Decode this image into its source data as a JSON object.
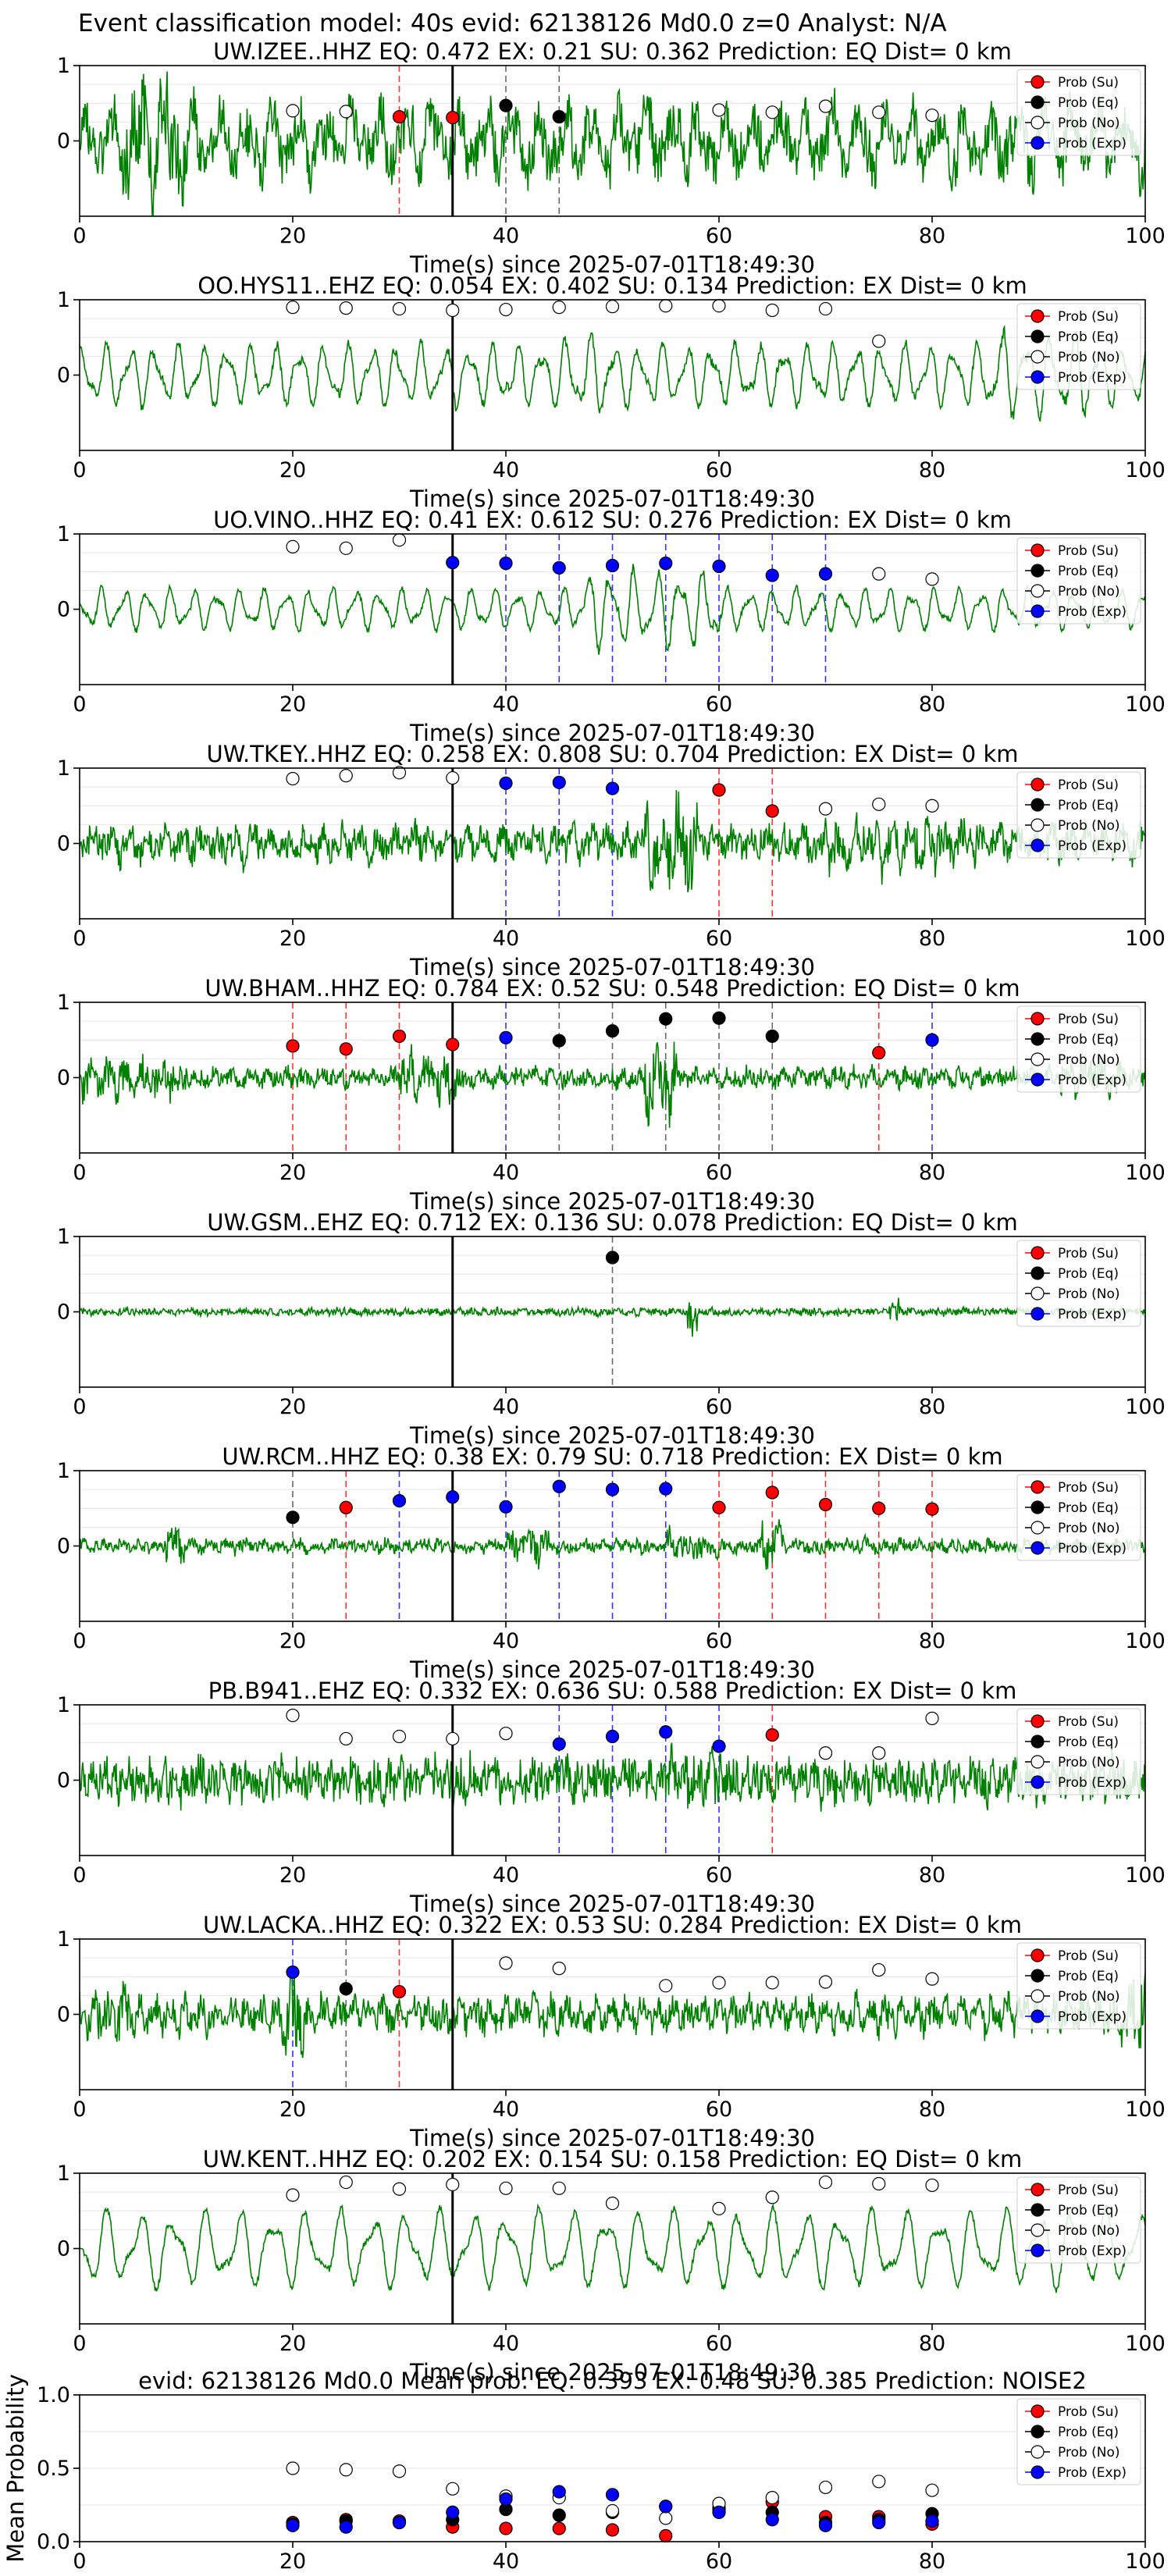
{
  "suptitle": "Event classification model: 40s evid: 62138126 Md0.0 z=0 Analyst: N/A",
  "colors": {
    "waveform": "#008000",
    "su": "#ff0000",
    "eq": "#000000",
    "no": "#ffffff",
    "exp": "#0000ff",
    "arrival_line": "#000000",
    "grid": "#e6e6e6"
  },
  "icons": [
    "legend-marker-su",
    "legend-marker-eq",
    "legend-marker-no",
    "legend-marker-exp"
  ],
  "legend_labels": [
    "Prob (Su)",
    "Prob (Eq)",
    "Prob (No)",
    "Prob (Exp)"
  ],
  "chart_data": [
    {
      "type": "line",
      "station": "UW.IZEE..HHZ",
      "title": "UW.IZEE..HHZ   EQ: 0.472  EX: 0.21  SU: 0.362   Prediction: EQ    Dist= 0 km",
      "xlabel": "Time(s) since 2025-07-01T18:49:30",
      "xlim": [
        0,
        100
      ],
      "ylim": [
        -1,
        1
      ],
      "xticks": [
        "0",
        "20",
        "40",
        "60",
        "80",
        "100"
      ],
      "yticks": [
        "1",
        "0"
      ],
      "legend": "top-right",
      "grid": true,
      "wave": {
        "amp": 0.55,
        "cycles": 40,
        "noise": 0.9,
        "bursts": [
          [
            4,
            10,
            1.6
          ],
          [
            30,
            40,
            1.0
          ]
        ]
      },
      "arrival": 35,
      "points": {
        "su": [
          [
            30,
            0.32
          ],
          [
            35,
            0.31
          ]
        ],
        "eq": [
          [
            40,
            0.47
          ],
          [
            45,
            0.32
          ]
        ],
        "no": [
          [
            20,
            0.4
          ],
          [
            25,
            0.39
          ],
          [
            60,
            0.41
          ],
          [
            65,
            0.38
          ],
          [
            70,
            0.46
          ],
          [
            75,
            0.38
          ],
          [
            80,
            0.34
          ]
        ],
        "exp": []
      }
    },
    {
      "type": "line",
      "station": "OO.HYS11..EHZ",
      "title": "OO.HYS11..EHZ   EQ: 0.054  EX: 0.402  SU: 0.134   Prediction: EX    Dist= 0 km",
      "xlabel": "Time(s) since 2025-07-01T18:49:30",
      "xlim": [
        0,
        100
      ],
      "ylim": [
        -1,
        1
      ],
      "xticks": [
        "0",
        "20",
        "40",
        "60",
        "80",
        "100"
      ],
      "yticks": [
        "1",
        "0"
      ],
      "legend": "top-right",
      "grid": true,
      "wave": {
        "amp": 0.6,
        "cycles": 44,
        "noise": 0.15,
        "bursts": [
          [
            45,
            50,
            1.3
          ],
          [
            85,
            95,
            1.4
          ]
        ]
      },
      "arrival": 35,
      "points": {
        "su": [],
        "eq": [],
        "no": [
          [
            20,
            0.9
          ],
          [
            25,
            0.89
          ],
          [
            30,
            0.88
          ],
          [
            35,
            0.86
          ],
          [
            40,
            0.87
          ],
          [
            45,
            0.9
          ],
          [
            50,
            0.91
          ],
          [
            55,
            0.92
          ],
          [
            60,
            0.92
          ],
          [
            65,
            0.86
          ],
          [
            70,
            0.88
          ],
          [
            75,
            0.45
          ]
        ],
        "exp": []
      }
    },
    {
      "type": "line",
      "station": "UO.VINO..HHZ",
      "title": "UO.VINO..HHZ   EQ: 0.41  EX: 0.612  SU: 0.276   Prediction: EX    Dist= 0 km",
      "xlabel": "Time(s) since 2025-07-01T18:49:30",
      "xlim": [
        0,
        100
      ],
      "ylim": [
        -1,
        1
      ],
      "xticks": [
        "0",
        "20",
        "40",
        "60",
        "80",
        "100"
      ],
      "yticks": [
        "1",
        "0"
      ],
      "legend": "top-right",
      "grid": true,
      "wave": {
        "amp": 0.4,
        "cycles": 46,
        "noise": 0.1,
        "bursts": [
          [
            47,
            60,
            1.9
          ]
        ]
      },
      "arrival": 35,
      "points": {
        "su": [],
        "eq": [],
        "no": [
          [
            20,
            0.83
          ],
          [
            25,
            0.81
          ],
          [
            30,
            0.92
          ],
          [
            75,
            0.47
          ],
          [
            80,
            0.4
          ]
        ],
        "exp": [
          [
            35,
            0.62
          ],
          [
            40,
            0.61
          ],
          [
            45,
            0.55
          ],
          [
            50,
            0.58
          ],
          [
            55,
            0.61
          ],
          [
            60,
            0.57
          ],
          [
            65,
            0.45
          ],
          [
            70,
            0.47
          ]
        ]
      }
    },
    {
      "type": "line",
      "station": "UW.TKEY..HHZ",
      "title": "UW.TKEY..HHZ   EQ: 0.258  EX: 0.808  SU: 0.704   Prediction: EX    Dist= 0 km",
      "xlabel": "Time(s) since 2025-07-01T18:49:30",
      "xlim": [
        0,
        100
      ],
      "ylim": [
        -1,
        1
      ],
      "xticks": [
        "0",
        "20",
        "40",
        "60",
        "80",
        "100"
      ],
      "yticks": [
        "1",
        "0"
      ],
      "legend": "top-right",
      "grid": true,
      "wave": {
        "amp": 0.2,
        "cycles": 60,
        "noise": 0.5,
        "bursts": [
          [
            53,
            58,
            2.6
          ],
          [
            70,
            85,
            1.4
          ]
        ]
      },
      "arrival": 35,
      "points": {
        "su": [
          [
            60,
            0.71
          ],
          [
            65,
            0.43
          ]
        ],
        "eq": [],
        "no": [
          [
            20,
            0.86
          ],
          [
            25,
            0.9
          ],
          [
            30,
            0.94
          ],
          [
            35,
            0.87
          ],
          [
            70,
            0.46
          ],
          [
            75,
            0.52
          ],
          [
            80,
            0.5
          ]
        ],
        "exp": [
          [
            40,
            0.8
          ],
          [
            45,
            0.81
          ],
          [
            50,
            0.73
          ]
        ]
      }
    },
    {
      "type": "line",
      "station": "UW.BHAM..HHZ",
      "title": "UW.BHAM..HHZ   EQ: 0.784  EX: 0.52  SU: 0.548   Prediction: EQ    Dist= 0 km",
      "xlabel": "Time(s) since 2025-07-01T18:49:30",
      "xlim": [
        0,
        100
      ],
      "ylim": [
        -1,
        1
      ],
      "xticks": [
        "0",
        "20",
        "40",
        "60",
        "80",
        "100"
      ],
      "yticks": [
        "1",
        "0"
      ],
      "legend": "top-right",
      "grid": true,
      "wave": {
        "amp": 0.1,
        "cycles": 60,
        "noise": 0.3,
        "bursts": [
          [
            0,
            10,
            2.0
          ],
          [
            30,
            36,
            2.5
          ],
          [
            53,
            56,
            3.5
          ],
          [
            92,
            98,
            1.8
          ]
        ]
      },
      "arrival": 35,
      "points": {
        "su": [
          [
            20,
            0.42
          ],
          [
            25,
            0.38
          ],
          [
            30,
            0.55
          ],
          [
            35,
            0.44
          ],
          [
            75,
            0.33
          ]
        ],
        "eq": [
          [
            45,
            0.49
          ],
          [
            50,
            0.62
          ],
          [
            55,
            0.78
          ],
          [
            60,
            0.79
          ],
          [
            65,
            0.55
          ]
        ],
        "no": [],
        "exp": [
          [
            40,
            0.53
          ],
          [
            80,
            0.5
          ]
        ]
      }
    },
    {
      "type": "line",
      "station": "UW.GSM..EHZ",
      "title": "UW.GSM..EHZ   EQ: 0.712  EX: 0.136  SU: 0.078   Prediction: EQ    Dist= 0 km",
      "xlabel": "Time(s) since 2025-07-01T18:49:30",
      "xlim": [
        0,
        100
      ],
      "ylim": [
        -1,
        1
      ],
      "xticks": [
        "0",
        "20",
        "40",
        "60",
        "80",
        "100"
      ],
      "yticks": [
        "1",
        "0"
      ],
      "legend": "top-right",
      "grid": true,
      "wave": {
        "amp": 0.02,
        "cycles": 80,
        "noise": 0.12,
        "bursts": [
          [
            57,
            58,
            6.0
          ],
          [
            76,
            77,
            3.0
          ]
        ]
      },
      "arrival": 35,
      "points": {
        "su": [],
        "eq": [
          [
            50,
            0.72
          ]
        ],
        "no": [],
        "exp": []
      }
    },
    {
      "type": "line",
      "station": "UW.RCM..HHZ",
      "title": "UW.RCM..HHZ   EQ: 0.38  EX: 0.79  SU: 0.718   Prediction: EX    Dist= 0 km",
      "xlabel": "Time(s) since 2025-07-01T18:49:30",
      "xlim": [
        0,
        100
      ],
      "ylim": [
        -1,
        1
      ],
      "xticks": [
        "0",
        "20",
        "40",
        "60",
        "80",
        "100"
      ],
      "yticks": [
        "1",
        "0"
      ],
      "legend": "top-right",
      "grid": true,
      "wave": {
        "amp": 0.06,
        "cycles": 60,
        "noise": 0.22,
        "bursts": [
          [
            8,
            10,
            3.0
          ],
          [
            40,
            44,
            2.2
          ],
          [
            55,
            60,
            2.0
          ],
          [
            64,
            66,
            3.0
          ]
        ]
      },
      "arrival": 35,
      "points": {
        "su": [
          [
            25,
            0.51
          ],
          [
            60,
            0.51
          ],
          [
            65,
            0.71
          ],
          [
            70,
            0.55
          ],
          [
            75,
            0.5
          ],
          [
            80,
            0.49
          ]
        ],
        "eq": [
          [
            20,
            0.38
          ]
        ],
        "no": [],
        "exp": [
          [
            30,
            0.6
          ],
          [
            35,
            0.65
          ],
          [
            40,
            0.52
          ],
          [
            45,
            0.79
          ],
          [
            50,
            0.75
          ],
          [
            55,
            0.76
          ]
        ]
      }
    },
    {
      "type": "line",
      "station": "PB.B941..EHZ",
      "title": "PB.B941..EHZ   EQ: 0.332  EX: 0.636  SU: 0.588   Prediction: EX    Dist= 0 km",
      "xlabel": "Time(s) since 2025-07-01T18:49:30",
      "xlim": [
        0,
        100
      ],
      "ylim": [
        -1,
        1
      ],
      "xticks": [
        "0",
        "20",
        "40",
        "60",
        "80",
        "100"
      ],
      "yticks": [
        "1",
        "0"
      ],
      "legend": "top-right",
      "grid": true,
      "wave": {
        "amp": 0.15,
        "cycles": 90,
        "noise": 0.7,
        "bursts": [
          [
            55,
            60,
            1.3
          ]
        ]
      },
      "arrival": 35,
      "points": {
        "su": [
          [
            65,
            0.6
          ]
        ],
        "eq": [],
        "no": [
          [
            20,
            0.86
          ],
          [
            25,
            0.55
          ],
          [
            30,
            0.58
          ],
          [
            35,
            0.55
          ],
          [
            40,
            0.62
          ],
          [
            70,
            0.36
          ],
          [
            75,
            0.36
          ],
          [
            80,
            0.82
          ]
        ],
        "exp": [
          [
            45,
            0.48
          ],
          [
            50,
            0.58
          ],
          [
            55,
            0.64
          ],
          [
            60,
            0.45
          ]
        ]
      }
    },
    {
      "type": "line",
      "station": "UW.LACKA..HHZ",
      "title": "UW.LACKA..HHZ   EQ: 0.322  EX: 0.53  SU: 0.284   Prediction: EX    Dist= 0 km",
      "xlabel": "Time(s) since 2025-07-01T18:49:30",
      "xlim": [
        0,
        100
      ],
      "ylim": [
        -1,
        1
      ],
      "xticks": [
        "0",
        "20",
        "40",
        "60",
        "80",
        "100"
      ],
      "yticks": [
        "1",
        "0"
      ],
      "legend": "top-right",
      "grid": true,
      "wave": {
        "amp": 0.2,
        "cycles": 70,
        "noise": 0.5,
        "bursts": [
          [
            0,
            5,
            1.5
          ],
          [
            19,
            21,
            2.2
          ],
          [
            97,
            100,
            2.0
          ]
        ]
      },
      "arrival": 35,
      "points": {
        "su": [
          [
            30,
            0.3
          ]
        ],
        "eq": [
          [
            25,
            0.34
          ]
        ],
        "no": [
          [
            40,
            0.68
          ],
          [
            45,
            0.61
          ],
          [
            55,
            0.38
          ],
          [
            60,
            0.42
          ],
          [
            65,
            0.42
          ],
          [
            70,
            0.43
          ],
          [
            75,
            0.59
          ],
          [
            80,
            0.47
          ]
        ],
        "exp": [
          [
            20,
            0.56
          ]
        ]
      }
    },
    {
      "type": "line",
      "station": "UW.KENT..HHZ",
      "title": "UW.KENT..HHZ   EQ: 0.202  EX: 0.154  SU: 0.158   Prediction: EQ    Dist= 0 km",
      "xlabel": "Time(s) since 2025-07-01T18:49:30",
      "xlim": [
        0,
        100
      ],
      "ylim": [
        -1,
        1
      ],
      "xticks": [
        "0",
        "20",
        "40",
        "60",
        "80",
        "100"
      ],
      "yticks": [
        "1",
        "0"
      ],
      "legend": "top-right",
      "grid": true,
      "wave": {
        "amp": 0.75,
        "cycles": 32,
        "noise": 0.12,
        "bursts": []
      },
      "arrival": 35,
      "points": {
        "su": [],
        "eq": [],
        "no": [
          [
            20,
            0.71
          ],
          [
            25,
            0.88
          ],
          [
            30,
            0.79
          ],
          [
            35,
            0.85
          ],
          [
            40,
            0.8
          ],
          [
            45,
            0.8
          ],
          [
            50,
            0.6
          ],
          [
            60,
            0.53
          ],
          [
            65,
            0.68
          ],
          [
            70,
            0.88
          ],
          [
            75,
            0.86
          ],
          [
            80,
            0.84
          ]
        ],
        "exp": []
      }
    },
    {
      "type": "scatter",
      "station": "mean",
      "title": "evid: 62138126  Md0.0   Mean prob:   EQ: 0.393  EX: 0.48  SU: 0.385   Prediction: NOISE2",
      "xlabel": "",
      "ylabel": "Mean Probability",
      "xlim": [
        0,
        100
      ],
      "ylim": [
        0,
        1
      ],
      "xticks": [
        "0",
        "20",
        "40",
        "60",
        "80",
        "100"
      ],
      "yticks": [
        "1.0",
        "0.5",
        "0.0"
      ],
      "legend": "top-right",
      "grid": true,
      "points": {
        "su": [
          [
            20,
            0.13
          ],
          [
            25,
            0.15
          ],
          [
            30,
            0.14
          ],
          [
            35,
            0.1
          ],
          [
            40,
            0.09
          ],
          [
            45,
            0.09
          ],
          [
            50,
            0.08
          ],
          [
            55,
            0.04
          ],
          [
            60,
            0.22
          ],
          [
            65,
            0.27
          ],
          [
            70,
            0.17
          ],
          [
            75,
            0.17
          ],
          [
            80,
            0.12
          ]
        ],
        "eq": [
          [
            20,
            0.12
          ],
          [
            25,
            0.14
          ],
          [
            30,
            0.13
          ],
          [
            35,
            0.15
          ],
          [
            40,
            0.22
          ],
          [
            45,
            0.18
          ],
          [
            50,
            0.2
          ],
          [
            55,
            0.24
          ],
          [
            60,
            0.23
          ],
          [
            65,
            0.2
          ],
          [
            70,
            0.13
          ],
          [
            75,
            0.15
          ],
          [
            80,
            0.19
          ]
        ],
        "no": [
          [
            20,
            0.5
          ],
          [
            25,
            0.49
          ],
          [
            30,
            0.48
          ],
          [
            35,
            0.36
          ],
          [
            40,
            0.31
          ],
          [
            45,
            0.3
          ],
          [
            50,
            0.21
          ],
          [
            55,
            0.16
          ],
          [
            60,
            0.26
          ],
          [
            65,
            0.3
          ],
          [
            70,
            0.37
          ],
          [
            75,
            0.41
          ],
          [
            80,
            0.35
          ]
        ],
        "exp": [
          [
            20,
            0.11
          ],
          [
            25,
            0.1
          ],
          [
            30,
            0.13
          ],
          [
            35,
            0.2
          ],
          [
            40,
            0.29
          ],
          [
            45,
            0.34
          ],
          [
            50,
            0.32
          ],
          [
            55,
            0.24
          ],
          [
            60,
            0.2
          ],
          [
            65,
            0.15
          ],
          [
            70,
            0.11
          ],
          [
            75,
            0.13
          ],
          [
            80,
            0.14
          ]
        ]
      }
    }
  ]
}
